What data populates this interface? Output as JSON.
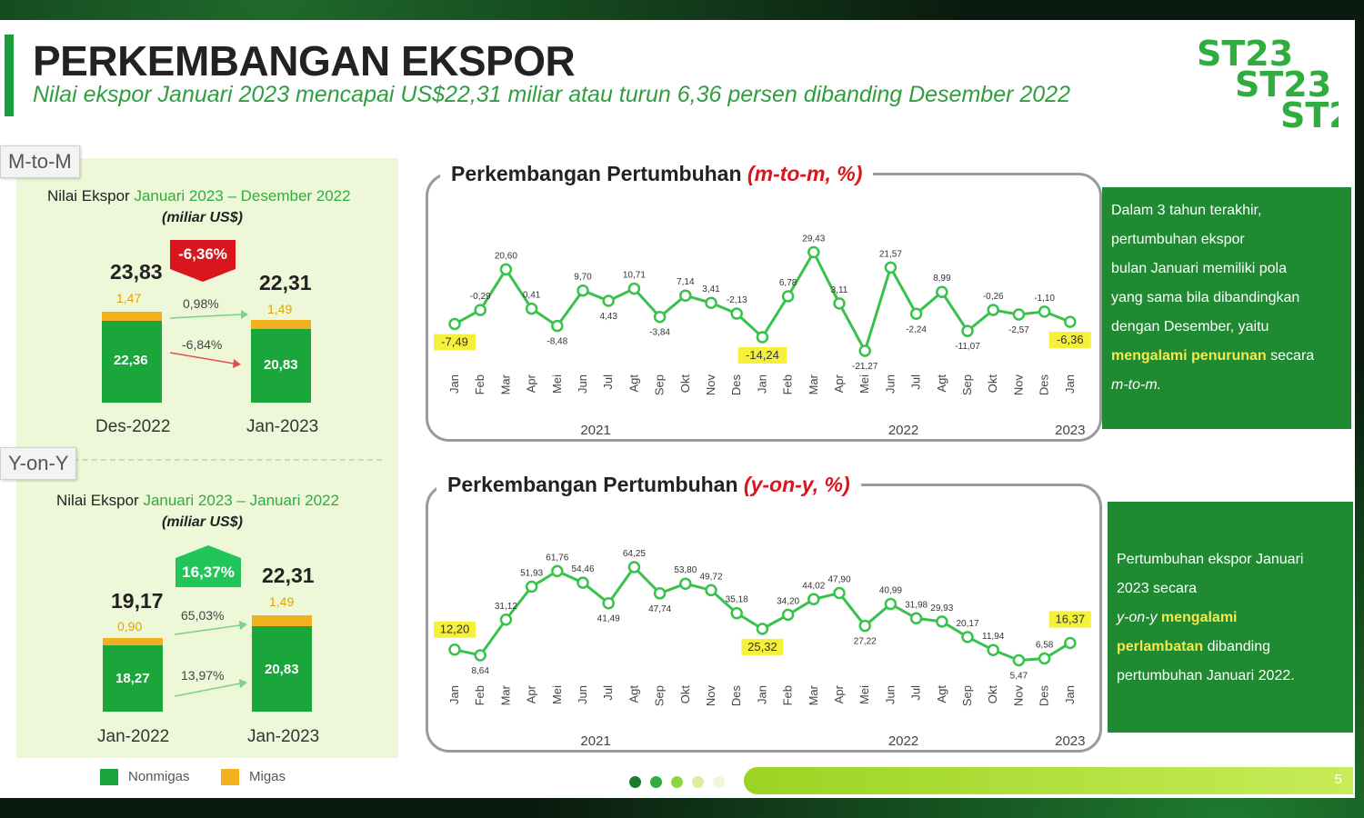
{
  "header": {
    "title": "PERKEMBANGAN EKSPOR",
    "subtitle": "Nilai ekspor Januari 2023 mencapai US$22,31 miliar atau turun 6,36 persen dibanding Desember 2022",
    "logo_text": "ST23"
  },
  "left": {
    "mtom": {
      "tag": "M-to-M",
      "label_prefix": "Nilai Ekspor",
      "label_period": "Januari 2023 – Desember 2022",
      "unit": "(miliar US$)",
      "change": "-6,36%",
      "bar1": {
        "total": "23,83",
        "migas": "1,47",
        "nonmigas": "22,36",
        "xlabel": "Des-2022"
      },
      "bar2": {
        "total": "22,31",
        "migas": "1,49",
        "nonmigas": "20,83",
        "xlabel": "Jan-2023"
      },
      "migas_change": "0,98%",
      "nonmigas_change": "-6,84%"
    },
    "yony": {
      "tag": "Y-on-Y",
      "label_prefix": "Nilai Ekspor",
      "label_period": "Januari 2023 – Januari 2022",
      "unit": "(miliar US$)",
      "change": "16,37%",
      "bar1": {
        "total": "19,17",
        "migas": "0,90",
        "nonmigas": "18,27",
        "xlabel": "Jan-2022"
      },
      "bar2": {
        "total": "22,31",
        "migas": "1,49",
        "nonmigas": "20,83",
        "xlabel": "Jan-2023"
      },
      "migas_change": "65,03%",
      "nonmigas_change": "13,97%"
    },
    "legend": {
      "nonmigas": "Nonmigas",
      "migas": "Migas"
    }
  },
  "chart_data": [
    {
      "type": "line",
      "title_main": "Perkembangan Pertumbuhan",
      "title_unit": "(m-to-m, %)",
      "x": [
        "Jan",
        "Feb",
        "Mar",
        "Apr",
        "Mei",
        "Jun",
        "Jul",
        "Agt",
        "Sep",
        "Okt",
        "Nov",
        "Des",
        "Jan",
        "Feb",
        "Mar",
        "Apr",
        "Mei",
        "Jun",
        "Jul",
        "Agt",
        "Sep",
        "Okt",
        "Nov",
        "Des",
        "Jan"
      ],
      "values": [
        -7.49,
        -0.29,
        20.6,
        0.41,
        -8.48,
        9.7,
        4.43,
        10.71,
        -3.84,
        7.14,
        3.41,
        -2.13,
        -14.24,
        6.78,
        29.43,
        3.11,
        -21.27,
        21.57,
        -2.24,
        8.99,
        -11.07,
        -0.26,
        -2.57,
        -1.1,
        -6.36
      ],
      "labels": [
        "-7,49",
        "-0,29",
        "20,60",
        "0,41",
        "-8,48",
        "9,70",
        "4,43",
        "10,71",
        "-3,84",
        "7,14",
        "3,41",
        "-2,13",
        "-14,24",
        "6,78",
        "29,43",
        "3,11",
        "-21,27",
        "21,57",
        "-2,24",
        "8,99",
        "-11,07",
        "-0,26",
        "-2,57",
        "-1,10",
        "-6,36"
      ],
      "highlight_jan": [
        0,
        12,
        24
      ],
      "years": [
        "2021",
        "2022",
        "2023"
      ],
      "ylim": [
        -25,
        32
      ],
      "grid": false,
      "line_color": "#38c24c"
    },
    {
      "type": "line",
      "title_main": "Perkembangan Pertumbuhan",
      "title_unit": "(y-on-y, %)",
      "x": [
        "Jan",
        "Feb",
        "Mar",
        "Apr",
        "Mei",
        "Jun",
        "Jul",
        "Agt",
        "Sep",
        "Okt",
        "Nov",
        "Des",
        "Jan",
        "Feb",
        "Mar",
        "Apr",
        "Mei",
        "Jun",
        "Jul",
        "Agt",
        "Sep",
        "Okt",
        "Nov",
        "Des",
        "Jan"
      ],
      "values": [
        12.2,
        8.64,
        31.12,
        51.93,
        61.76,
        54.46,
        41.49,
        64.25,
        47.74,
        53.8,
        49.72,
        35.18,
        25.32,
        34.2,
        44.02,
        47.9,
        27.22,
        40.99,
        31.98,
        29.93,
        20.17,
        11.94,
        5.47,
        6.58,
        16.37
      ],
      "labels": [
        "12,20",
        "8,64",
        "31,12",
        "51,93",
        "61,76",
        "54,46",
        "41,49",
        "64,25",
        "47,74",
        "53,80",
        "49,72",
        "35,18",
        "25,32",
        "34,20",
        "44,02",
        "47,90",
        "27,22",
        "40,99",
        "31,98",
        "29,93",
        "20,17",
        "11,94",
        "5,47",
        "6,58",
        "16,37"
      ],
      "highlight_jan": [
        0,
        12,
        24
      ],
      "years": [
        "2021",
        "2022",
        "2023"
      ],
      "ylim": [
        0,
        70
      ],
      "grid": false,
      "line_color": "#38c24c"
    }
  ],
  "side_notes": {
    "mtom": {
      "lines": [
        "Dalam 3 tahun terakhir,",
        "pertumbuhan ekspor",
        "bulan Januari memiliki pola",
        "yang sama bila dibandingkan",
        "dengan Desember, yaitu"
      ],
      "highlight": "mengalami penurunan",
      "tail1": " secara",
      "tail2": "m-to-m."
    },
    "yony": {
      "line1": "Pertumbuhan ekspor Januari",
      "line2": "2023 secara",
      "line3_plain": "y-on-y ",
      "line3_hl": "mengalami",
      "line4_hl": "perlambatan",
      "line4_plain": " dibanding",
      "line5": "pertumbuhan Januari 2022."
    }
  },
  "footer": {
    "page": "5"
  },
  "colors": {
    "accent": "#1a9c3a",
    "nonmigas": "#1aa63a",
    "migas": "#f2b01e",
    "decline": "#d9151e",
    "growth": "#22c55a",
    "highlight": "#f5f03a"
  }
}
